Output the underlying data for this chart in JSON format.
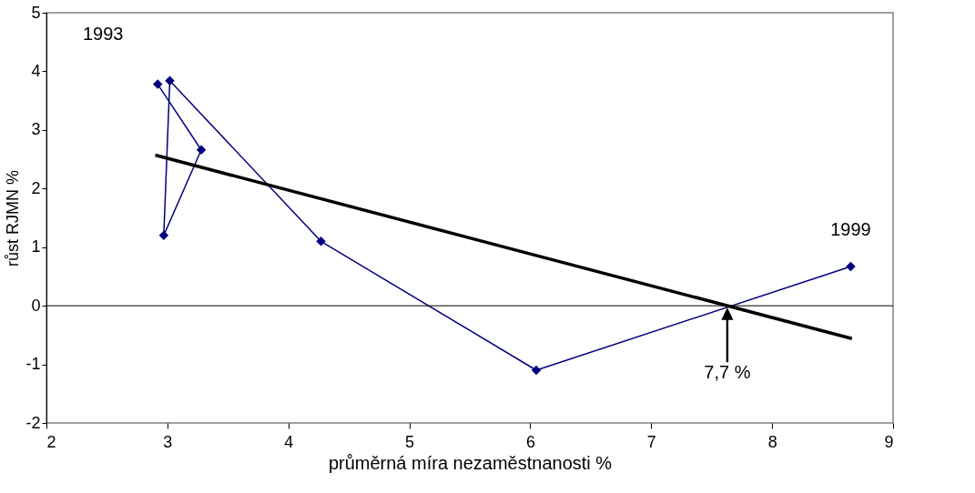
{
  "chart_data": {
    "type": "line",
    "xlabel": "průměrná míra nezaměstnanosti %",
    "ylabel": "růst RJMN %",
    "series": [
      {
        "color": "#00007f",
        "marker": "diamond",
        "x": [
          2.92,
          3.28,
          2.97,
          3.02,
          4.27,
          6.05,
          8.65
        ],
        "values": [
          3.78,
          2.66,
          1.2,
          3.84,
          1.1,
          -1.1,
          0.67
        ]
      },
      {
        "color": "#000000",
        "marker": "none",
        "x": [
          2.9,
          8.66
        ],
        "values": [
          2.57,
          -0.56
        ]
      }
    ],
    "xlim": [
      2,
      9
    ],
    "xticks": [
      2,
      3,
      4,
      5,
      6,
      7,
      8,
      9
    ],
    "ylim": [
      -2,
      5
    ],
    "yticks": [
      -2,
      -1,
      0,
      1,
      2,
      3,
      4,
      5
    ],
    "ref_lines": [
      {
        "axis": "y",
        "value": 0,
        "color": "#000000"
      }
    ],
    "annotations": [
      {
        "text": "1993",
        "x": 2.92,
        "y": 3.78
      },
      {
        "text": "1999",
        "x": 8.65,
        "y": 0.67
      },
      "7,7 %"
    ],
    "grid": false
  }
}
